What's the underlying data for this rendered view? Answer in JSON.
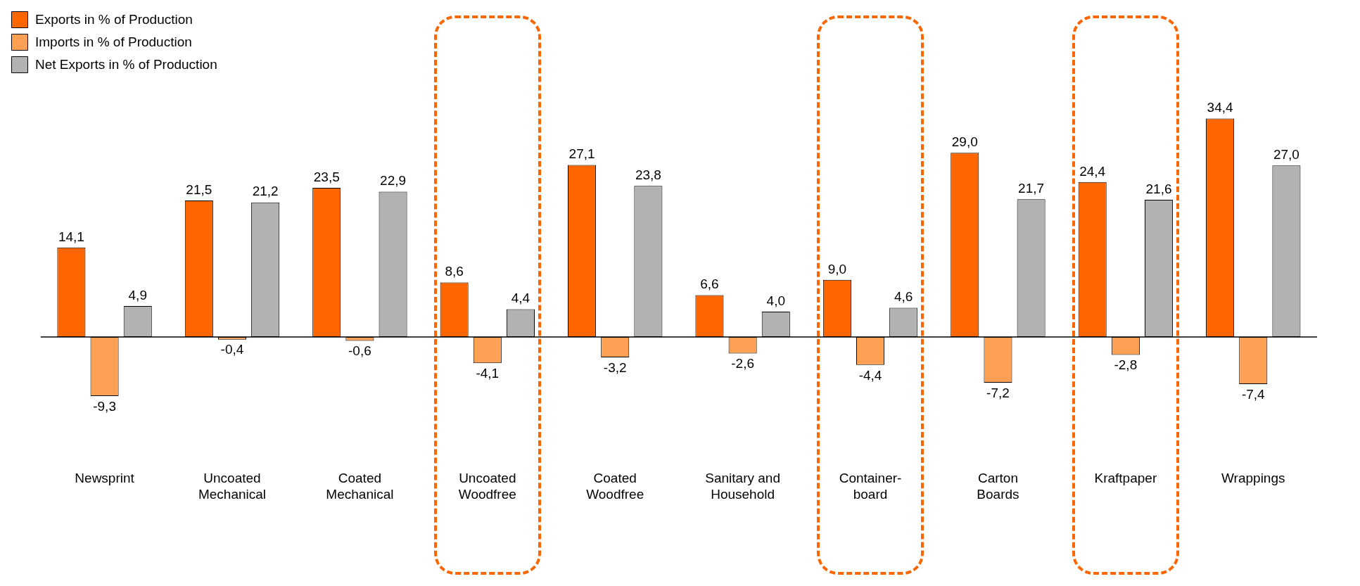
{
  "chart_data": {
    "type": "bar",
    "categories": [
      "Newsprint",
      "Uncoated Mechanical",
      "Coated Mechanical",
      "Uncoated Woodfree",
      "Coated Woodfree",
      "Sanitary and Household",
      "Container-board",
      "Carton Boards",
      "Kraftpaper",
      "Wrappings"
    ],
    "series": [
      {
        "name": "Exports in % of Production",
        "color": "#ff6600",
        "values": [
          14.1,
          21.5,
          23.5,
          8.6,
          27.1,
          6.6,
          9.0,
          29.0,
          24.4,
          34.4
        ],
        "value_labels": [
          "14,1",
          "21,5",
          "23,5",
          "8,6",
          "27,1",
          "6,6",
          "9,0",
          "29,0",
          "24,4",
          "34,4"
        ]
      },
      {
        "name": "Imports in % of Production",
        "color": "#ffa155",
        "values": [
          -9.3,
          -0.4,
          -0.6,
          -4.1,
          -3.2,
          -2.6,
          -4.4,
          -7.2,
          -2.8,
          -7.4
        ],
        "value_labels": [
          "-9,3",
          "-0,4",
          "-0,6",
          "-4,1",
          "-3,2",
          "-2,6",
          "-4,4",
          "-7,2",
          "-2,8",
          "-7,4"
        ]
      },
      {
        "name": "Net Exports in % of Production",
        "color": "#b2b2b2",
        "values": [
          4.9,
          21.2,
          22.9,
          4.4,
          23.8,
          4.0,
          4.6,
          21.7,
          21.6,
          27.0
        ],
        "value_labels": [
          "4,9",
          "21,2",
          "22,9",
          "4,4",
          "23,8",
          "4,0",
          "4,6",
          "21,7",
          "21,6",
          "27,0"
        ]
      }
    ],
    "legend": "top left",
    "grid": false
  }
}
